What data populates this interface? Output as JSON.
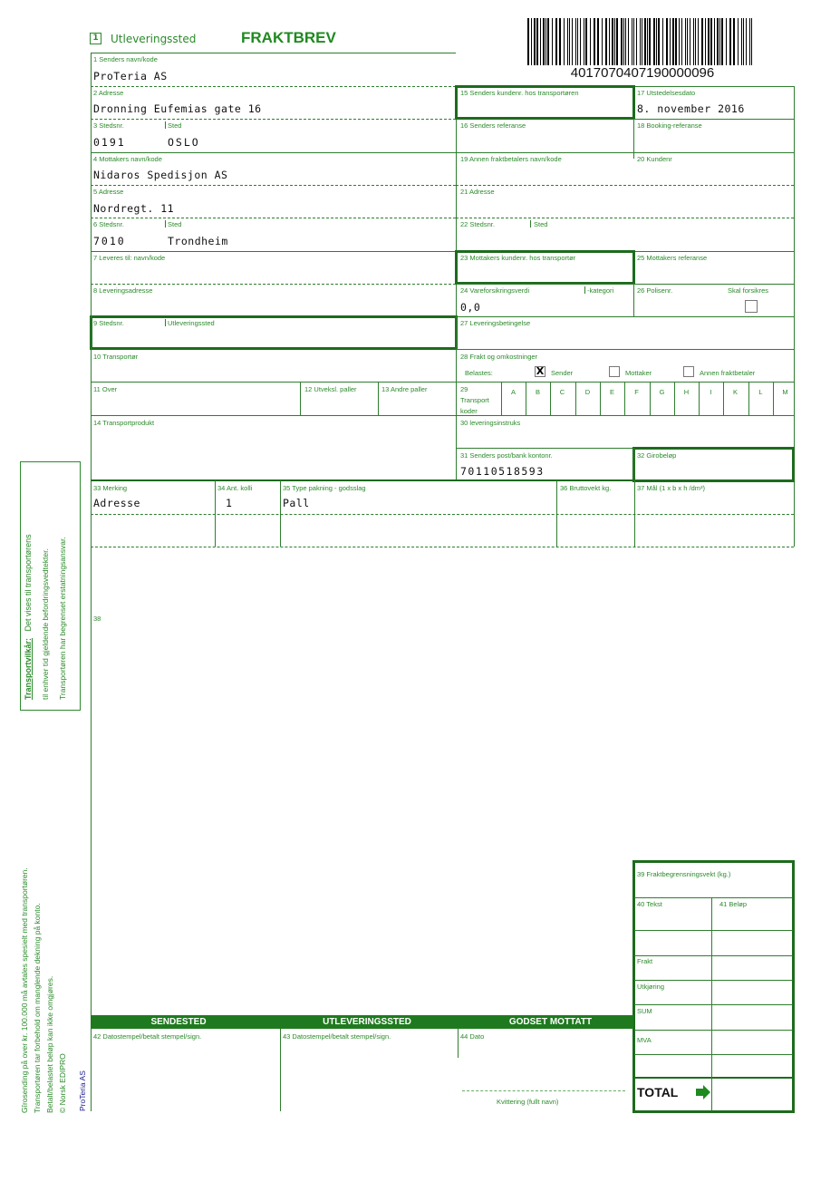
{
  "header": {
    "box_number": "1",
    "box_label": "Utleveringssted",
    "title": "FRAKTBREV",
    "barcode_number": "4017070407190000096"
  },
  "sender": {
    "name_label": "1 Senders navn/kode",
    "name": "ProTeria AS",
    "address_label": "2 Adresse",
    "address": "Dronning Eufemias gate 16",
    "postcode_label": "3 Stedsnr.",
    "place_label": "Sted",
    "postcode": "0191",
    "place": "OSLO"
  },
  "receiver": {
    "name_label": "4 Mottakers navn/kode",
    "name": "Nidaros Spedisjon AS",
    "address_label": "5 Adresse",
    "address": "Nordregt. 11",
    "postcode_label": "6 Stedsnr.",
    "place_label": "Sted",
    "postcode": "7010",
    "place": "Trondheim"
  },
  "delivery": {
    "to_label": "7 Leveres til: navn/kode",
    "address_label": "8 Leveringsadresse",
    "postcode_label": "9 Stedsnr.",
    "place_label": "Utleveringssted",
    "carrier_label": "10 Transportør",
    "over_label": "11 Over",
    "pallets_exch_label": "12 Utveksl. paller",
    "pallets_other_label": "13 Andre paller",
    "product_label": "14 Transportprodukt"
  },
  "right": {
    "f15": "15 Senders kundenr. hos transportøren",
    "f17": "17 Utstedelsesdato",
    "date": "8. november 2016",
    "f16": "16 Senders referanse",
    "f18": "18 Booking-referanse",
    "f19": "19 Annen fraktbetalers navn/kode",
    "f20": "20 Kundenr",
    "f21": "21 Adresse",
    "f22": "22 Stedsnr.",
    "f22b": "Sted",
    "f23": "23 Mottakers kundenr. hos transportør",
    "f25": "25 Mottakers referanse",
    "f24": "24 Vareforsikringsverdi",
    "f24b": "-kategori",
    "insurance_value": "0,0",
    "f26": "26 Polisenr.",
    "insure_label": "Skal forsikres",
    "insure_checked": false,
    "f27": "27 Leveringsbetingelse",
    "f28": "28 Frakt og omkostninger",
    "charged_label": "Belastes:",
    "charge_options": [
      {
        "label": "Sender",
        "checked": true,
        "mark": "X"
      },
      {
        "label": "Mottaker",
        "checked": false
      },
      {
        "label": "Annen fraktbetaler",
        "checked": false
      }
    ],
    "f29": "29 Transport koder",
    "codes": [
      "A",
      "B",
      "C",
      "D",
      "E",
      "F",
      "G",
      "H",
      "I",
      "K",
      "L",
      "M"
    ],
    "f30": "30 leveringsinstruks",
    "f31": "31 Senders post/bank kontonr.",
    "account": "70110518593",
    "f32": "32 Girobeløp"
  },
  "goods": {
    "f33": "33 Merking",
    "f34": "34 Ant. kolli",
    "f35": "35 Type pakning - godsslag",
    "f36": "36 Bruttovekt kg.",
    "f37": "37 Mål (1 x b x h /dm³)",
    "marking": "Adresse",
    "count": "1",
    "packaging": "Pall",
    "f38": "38"
  },
  "summary": {
    "f39": "39 Fraktbegrensningsvekt (kg.)",
    "f40": "40 Tekst",
    "f41": "41 Beløp",
    "rows": [
      "Frakt",
      "Utkjøring",
      "SUM",
      "MVA"
    ],
    "total": "TOTAL"
  },
  "footer": {
    "sections": [
      "SENDESTED",
      "UTLEVERINGSSTED",
      "GODSET MOTTATT"
    ],
    "f42": "42 Datostempel/betalt stempel/sign.",
    "f43": "43 Datostempel/betalt stempel/sign.",
    "f44": "44 Dato",
    "receipt": "Kvittering (fullt navn)"
  },
  "side": {
    "terms_title": "Transportvilkår:",
    "terms_1": "Det vises til transportørens",
    "terms_2": "til enhver tid gjeldende befordringsvedtekter.",
    "terms_3": "Transportøren har begrenset erstatningsansvar.",
    "note_1": "Gîrosending på over kr. 100.000 må avtales spesielt med transportøren.",
    "note_2": "Transportøren tar forbehold om manglende dekning på konto.",
    "note_3": "Betalt/belastet beløp kan ikke omgjøres.",
    "note_4": "© Norsk EDIPRO",
    "brand": "ProTeria AS"
  },
  "colors": {
    "green": "#1f7a1f",
    "label_green": "#2a8a2a"
  }
}
